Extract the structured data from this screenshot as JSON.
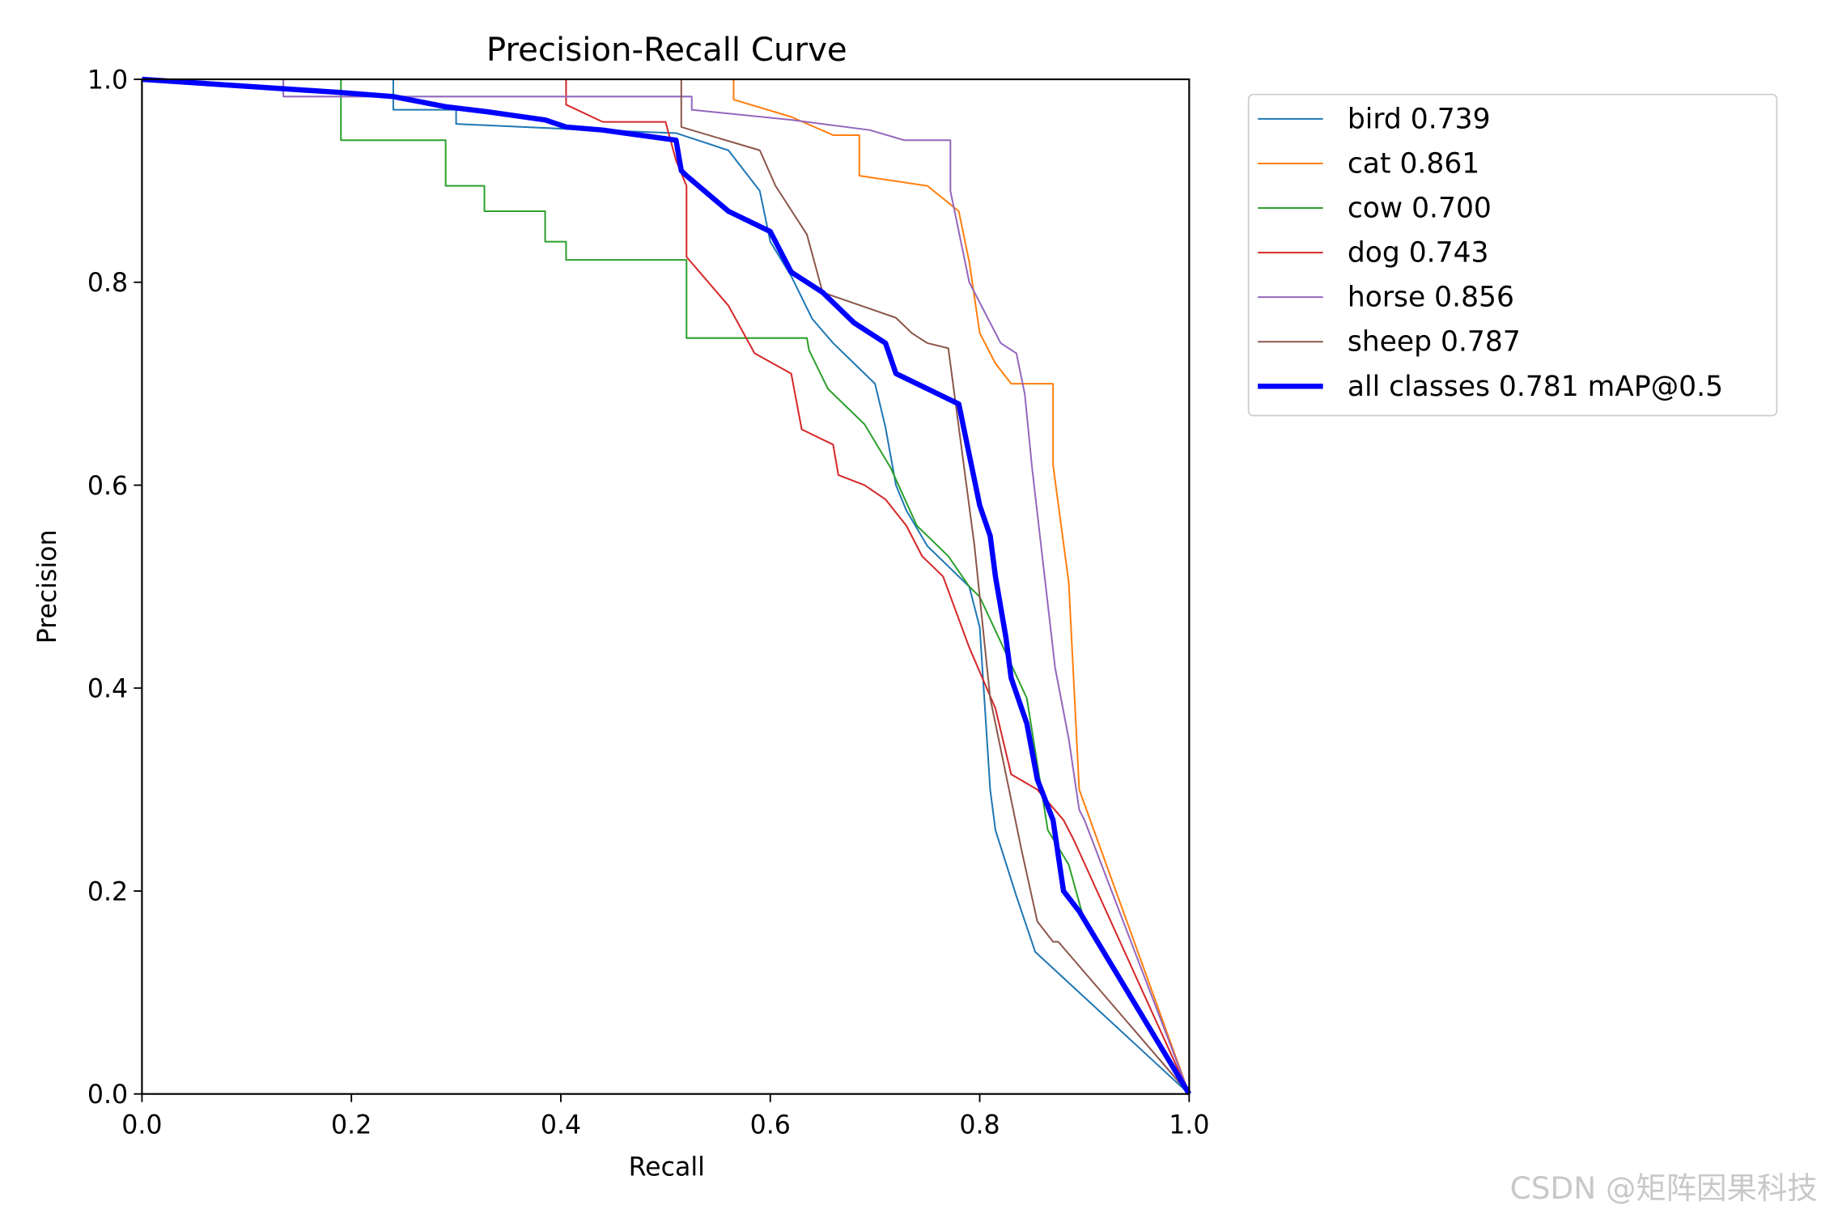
{
  "chart_data": {
    "type": "line",
    "title": "Precision-Recall Curve",
    "x_label": "Recall",
    "y_label": "Precision",
    "xlim": [
      0,
      1
    ],
    "ylim": [
      0,
      1
    ],
    "xticks": [
      {
        "value": 0,
        "label": "0.0"
      },
      0.2,
      0.4,
      0.6,
      0.8,
      {
        "value": 1,
        "label": "1.0"
      }
    ],
    "yticks": [
      {
        "value": 0,
        "label": "0.0"
      },
      0.2,
      0.4,
      0.6,
      0.8,
      {
        "value": 1,
        "label": "1.0"
      }
    ],
    "grid": false,
    "legend": "outside-upper-right",
    "watermark": "CSDN @矩阵因果科技",
    "series": [
      {
        "name": "bird 0.739",
        "color": "#1f77b4",
        "linewidth": 1.4,
        "x": [
          0,
          0.24,
          0.24,
          0.3,
          0.3,
          0.43,
          0.51,
          0.56,
          0.59,
          0.6,
          0.62,
          0.64,
          0.66,
          0.68,
          0.7,
          0.71,
          0.72,
          0.73,
          0.75,
          0.79,
          0.8,
          0.81,
          0.815,
          0.835,
          0.853,
          1.0
        ],
        "values": [
          1,
          1,
          0.97,
          0.97,
          0.956,
          0.95,
          0.947,
          0.93,
          0.89,
          0.84,
          0.806,
          0.764,
          0.74,
          0.72,
          0.7,
          0.657,
          0.6,
          0.575,
          0.54,
          0.5,
          0.46,
          0.3,
          0.26,
          0.195,
          0.14,
          0
        ]
      },
      {
        "name": "cat 0.861",
        "color": "#ff7f0e",
        "linewidth": 1.4,
        "x": [
          0,
          0.565,
          0.565,
          0.62,
          0.66,
          0.685,
          0.685,
          0.75,
          0.78,
          0.79,
          0.8,
          0.815,
          0.83,
          0.87,
          0.87,
          0.885,
          0.895,
          1.0
        ],
        "values": [
          1,
          1,
          0.98,
          0.963,
          0.945,
          0.945,
          0.905,
          0.895,
          0.87,
          0.82,
          0.75,
          0.72,
          0.7,
          0.7,
          0.62,
          0.504,
          0.3,
          0
        ]
      },
      {
        "name": "cow 0.700",
        "color": "#2ca02c",
        "linewidth": 1.4,
        "x": [
          0,
          0.19,
          0.19,
          0.29,
          0.29,
          0.327,
          0.327,
          0.385,
          0.385,
          0.405,
          0.405,
          0.52,
          0.52,
          0.635,
          0.637,
          0.655,
          0.69,
          0.715,
          0.74,
          0.77,
          0.79,
          0.8,
          0.845,
          0.865,
          0.885,
          0.9,
          1.0
        ],
        "values": [
          1,
          1,
          0.94,
          0.94,
          0.895,
          0.895,
          0.87,
          0.87,
          0.84,
          0.84,
          0.822,
          0.822,
          0.745,
          0.745,
          0.733,
          0.695,
          0.66,
          0.617,
          0.56,
          0.53,
          0.5,
          0.49,
          0.39,
          0.26,
          0.226,
          0.17,
          0
        ]
      },
      {
        "name": "dog 0.743",
        "color": "#d62728",
        "linewidth": 1.4,
        "x": [
          0,
          0.405,
          0.405,
          0.44,
          0.5,
          0.51,
          0.52,
          0.52,
          0.56,
          0.585,
          0.62,
          0.63,
          0.66,
          0.665,
          0.69,
          0.71,
          0.73,
          0.745,
          0.765,
          0.79,
          0.815,
          0.83,
          0.855,
          0.88,
          0.89,
          1.0
        ],
        "values": [
          1,
          1,
          0.975,
          0.958,
          0.958,
          0.92,
          0.895,
          0.825,
          0.777,
          0.73,
          0.71,
          0.655,
          0.64,
          0.61,
          0.6,
          0.586,
          0.56,
          0.53,
          0.51,
          0.44,
          0.38,
          0.315,
          0.3,
          0.27,
          0.25,
          0
        ]
      },
      {
        "name": "horse 0.856",
        "color": "#9467bd",
        "linewidth": 1.4,
        "x": [
          0,
          0.135,
          0.135,
          0.525,
          0.525,
          0.62,
          0.695,
          0.728,
          0.772,
          0.772,
          0.782,
          0.79,
          0.82,
          0.835,
          0.843,
          0.85,
          0.872,
          0.885,
          0.895,
          0.9,
          1.0
        ],
        "values": [
          1,
          1,
          0.983,
          0.983,
          0.97,
          0.96,
          0.95,
          0.94,
          0.94,
          0.89,
          0.84,
          0.8,
          0.74,
          0.73,
          0.69,
          0.617,
          0.42,
          0.35,
          0.28,
          0.27,
          0
        ]
      },
      {
        "name": "sheep 0.787",
        "color": "#8c564b",
        "linewidth": 1.4,
        "x": [
          0,
          0.515,
          0.515,
          0.59,
          0.605,
          0.635,
          0.65,
          0.72,
          0.735,
          0.75,
          0.77,
          0.795,
          0.81,
          0.84,
          0.855,
          0.87,
          0.875,
          1.0
        ],
        "values": [
          1,
          1,
          0.953,
          0.93,
          0.895,
          0.847,
          0.79,
          0.765,
          0.75,
          0.74,
          0.735,
          0.54,
          0.39,
          0.24,
          0.17,
          0.15,
          0.15,
          0
        ]
      },
      {
        "name": "all classes 0.781 mAP@0.5",
        "color": "#0000ff",
        "linewidth": 4.5,
        "x": [
          0,
          0.19,
          0.24,
          0.29,
          0.33,
          0.385,
          0.405,
          0.44,
          0.51,
          0.515,
          0.52,
          0.56,
          0.6,
          0.62,
          0.65,
          0.68,
          0.71,
          0.72,
          0.75,
          0.78,
          0.79,
          0.8,
          0.81,
          0.815,
          0.825,
          0.83,
          0.845,
          0.855,
          0.87,
          0.88,
          0.895,
          1.0
        ],
        "values": [
          1,
          0.987,
          0.983,
          0.973,
          0.968,
          0.96,
          0.953,
          0.95,
          0.94,
          0.91,
          0.905,
          0.87,
          0.85,
          0.81,
          0.79,
          0.76,
          0.74,
          0.71,
          0.695,
          0.68,
          0.63,
          0.58,
          0.55,
          0.51,
          0.45,
          0.41,
          0.365,
          0.31,
          0.27,
          0.2,
          0.18,
          0
        ]
      }
    ]
  }
}
